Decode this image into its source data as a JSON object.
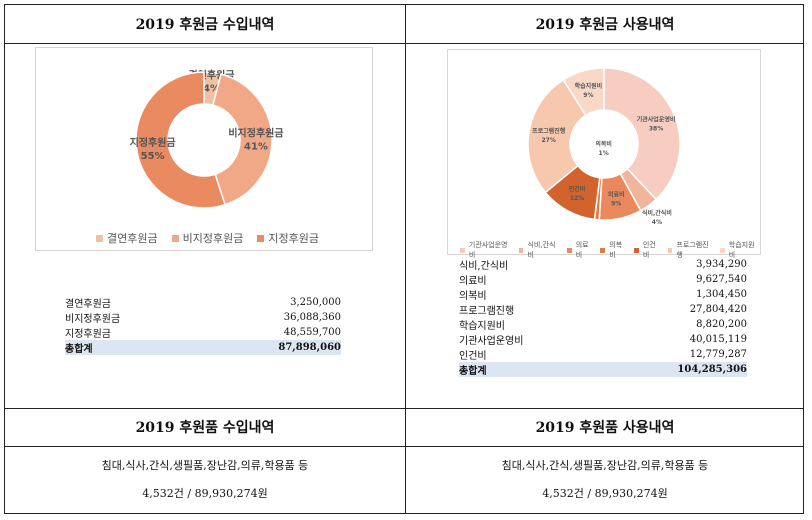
{
  "income_title": "2019 후원금 수입내역",
  "usage_title": "2019 후원금 사용내역",
  "goods_income_title": "2019 후원품 수입내역",
  "goods_usage_title": "2019 후원품 사용내역",
  "goods_income": {
    "items": "침대,식사,간식,생필품,장난감,의류,학용품 등",
    "summary": "4,532건  /  89,930,274원"
  },
  "goods_usage": {
    "items": "침대,식사,간식,생필품,장난감,의류,학용품 등",
    "summary": "4,532건  /  89,930,274원"
  },
  "income_table": {
    "rows": [
      {
        "label": "결연후원금",
        "value": "3,250,000"
      },
      {
        "label": "비지정후원금",
        "value": "36,088,360"
      },
      {
        "label": "지정후원금",
        "value": "48,559,700"
      }
    ],
    "total_label": "총합계",
    "total_value": "87,898,060"
  },
  "usage_table": {
    "rows": [
      {
        "label": "식비,간식비",
        "value": "3,934,290"
      },
      {
        "label": "의료비",
        "value": "9,627,540"
      },
      {
        "label": "의복비",
        "value": "1,304,450"
      },
      {
        "label": "프로그램진행",
        "value": "27,804,420"
      },
      {
        "label": "학습지원비",
        "value": "8,820,200"
      },
      {
        "label": "기관사업운영비",
        "value": "40,015,119"
      },
      {
        "label": "인건비",
        "value": "12,779,287"
      }
    ],
    "total_label": "총합계",
    "total_value": "104,285,306"
  },
  "chart_data": [
    {
      "type": "pie",
      "title": "",
      "categories": [
        "결연후원금",
        "비지정후원금",
        "지정후원금"
      ],
      "values": [
        4,
        41,
        55
      ],
      "value_labels": [
        "4%",
        "41%",
        "55%"
      ],
      "colors": [
        "#f4c0a4",
        "#f1a886",
        "#ea8a60"
      ],
      "legend": "bottom"
    },
    {
      "type": "pie",
      "title": "",
      "categories": [
        "기관사업운영비",
        "식비,간식비",
        "의료비",
        "의복비",
        "인건비",
        "프로그램진행",
        "학습지원비"
      ],
      "values": [
        38,
        4,
        9,
        1,
        12,
        27,
        9
      ],
      "value_labels": [
        "38%",
        "4%",
        "9%",
        "1%",
        "12%",
        "27%",
        "9%"
      ],
      "colors": [
        "#f6cdc0",
        "#f1b59b",
        "#e9895d",
        "#e07b45",
        "#d2632c",
        "#f7c8ad",
        "#f9d9c6"
      ],
      "legend": "bottom"
    }
  ]
}
